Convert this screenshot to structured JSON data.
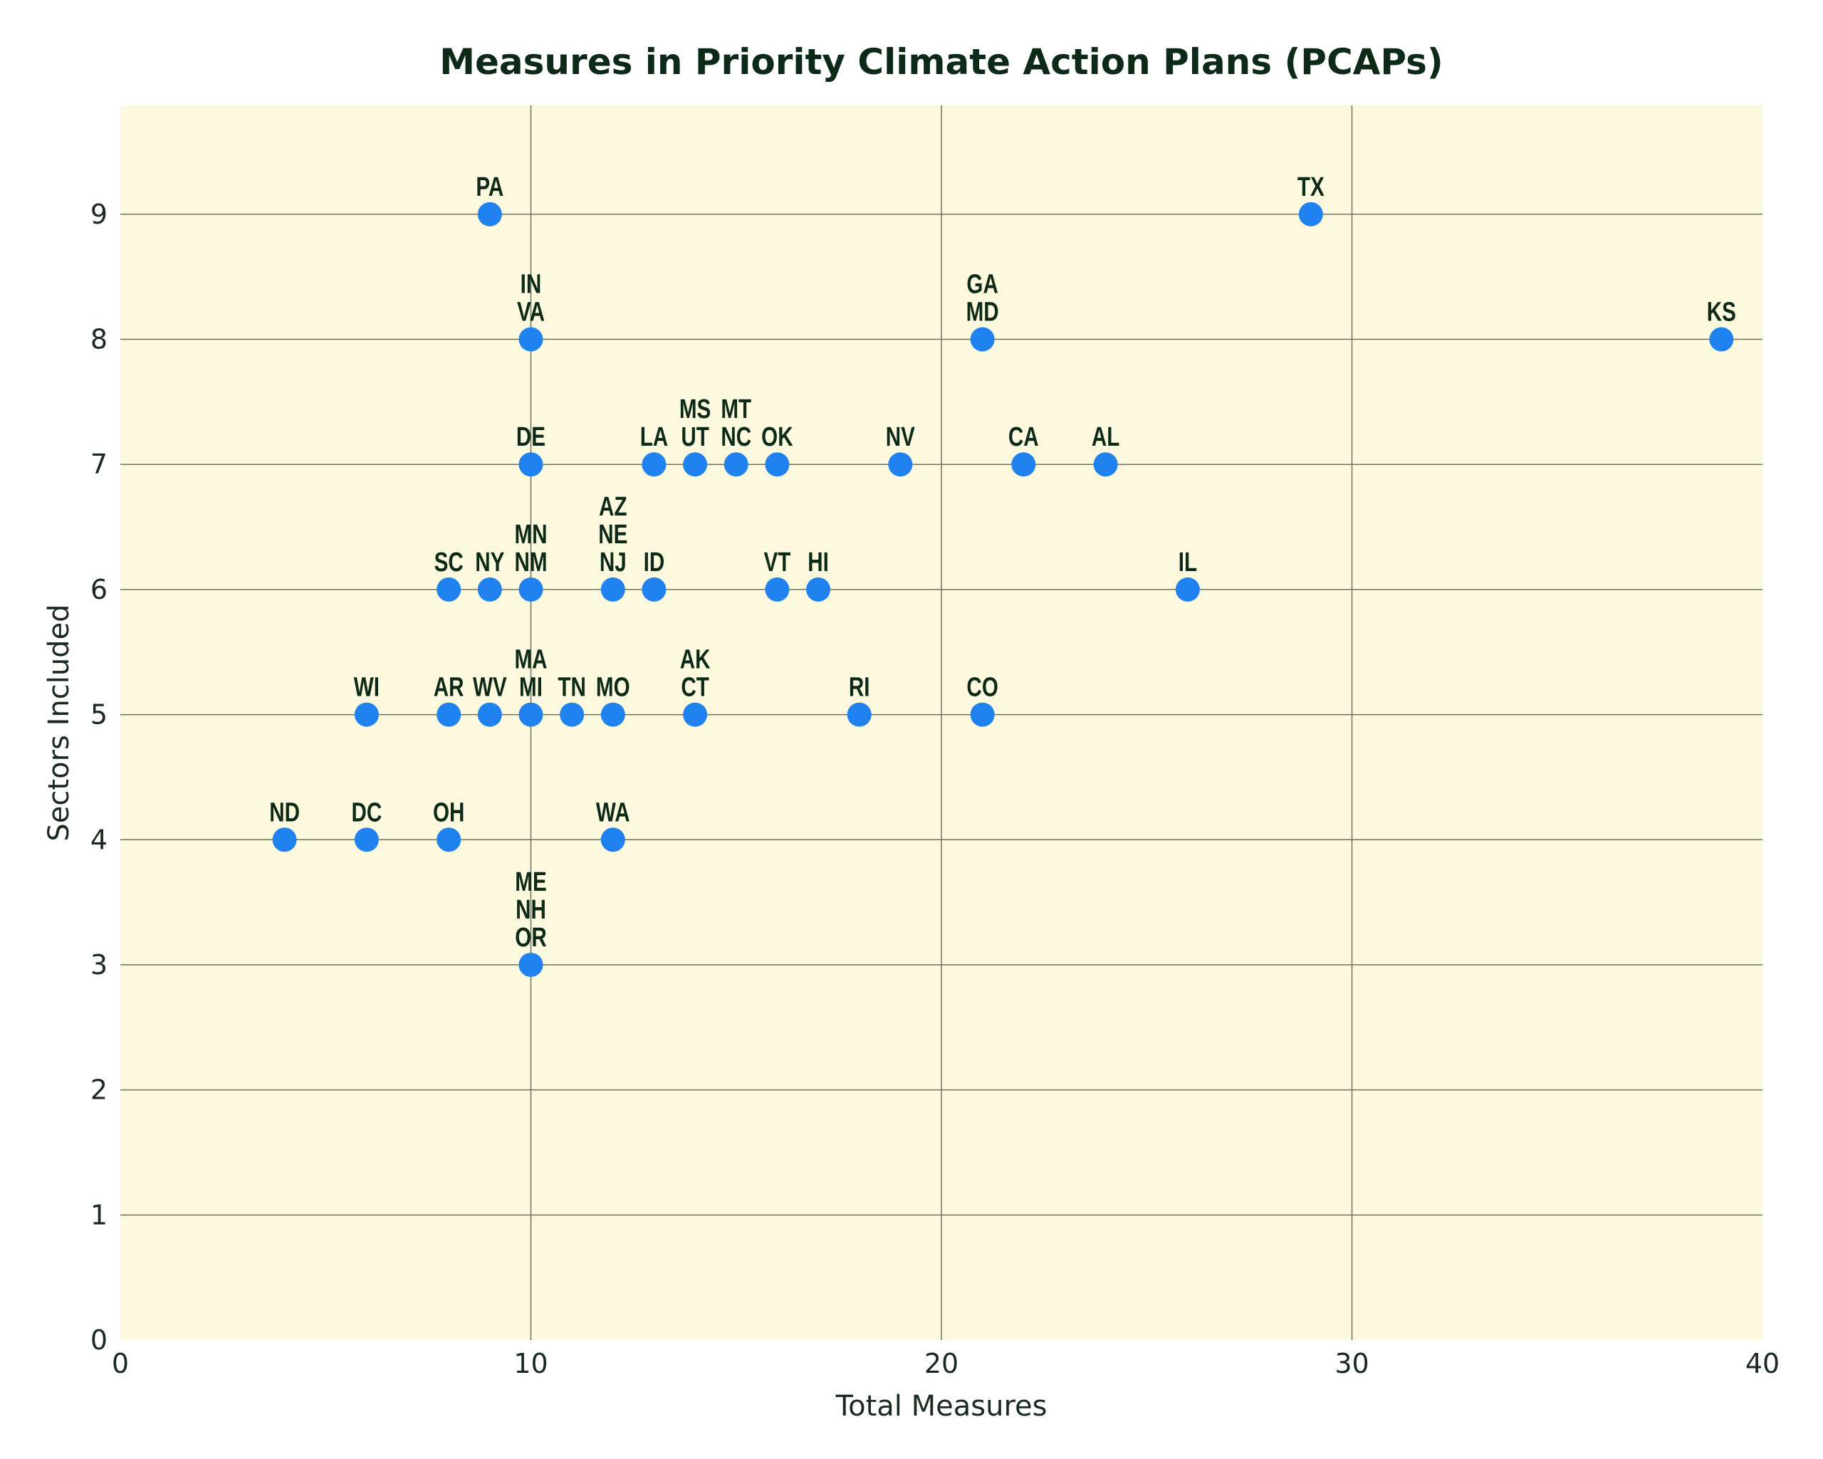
{
  "chart_data": {
    "type": "scatter",
    "title": "Measures in Priority Climate Action Plans (PCAPs)",
    "xlabel": "Total Measures",
    "ylabel": "Sectors Included",
    "xlim": [
      0,
      40
    ],
    "ylim": [
      0,
      9.87
    ],
    "xticks": [
      0,
      10,
      20,
      30,
      40
    ],
    "yticks": [
      0,
      1,
      2,
      3,
      4,
      5,
      6,
      7,
      8,
      9
    ],
    "grid": true,
    "colors": {
      "background": "#fdf9df",
      "point": "#1f82ee",
      "text": "#0d2a18",
      "grid": "#6b7360"
    },
    "points": [
      {
        "x": 9,
        "y": 9,
        "labels": [
          "PA"
        ]
      },
      {
        "x": 29,
        "y": 9,
        "labels": [
          "TX"
        ]
      },
      {
        "x": 10,
        "y": 8,
        "labels": [
          "IN",
          "VA"
        ]
      },
      {
        "x": 21,
        "y": 8,
        "labels": [
          "GA",
          "MD"
        ]
      },
      {
        "x": 39,
        "y": 8,
        "labels": [
          "KS"
        ]
      },
      {
        "x": 10,
        "y": 7,
        "labels": [
          "DE"
        ]
      },
      {
        "x": 13,
        "y": 7,
        "labels": [
          "LA"
        ]
      },
      {
        "x": 14,
        "y": 7,
        "labels": [
          "MS",
          "UT"
        ]
      },
      {
        "x": 15,
        "y": 7,
        "labels": [
          "MT",
          "NC"
        ]
      },
      {
        "x": 16,
        "y": 7,
        "labels": [
          "OK"
        ]
      },
      {
        "x": 19,
        "y": 7,
        "labels": [
          "NV"
        ]
      },
      {
        "x": 22,
        "y": 7,
        "labels": [
          "CA"
        ]
      },
      {
        "x": 24,
        "y": 7,
        "labels": [
          "AL"
        ]
      },
      {
        "x": 8,
        "y": 6,
        "labels": [
          "SC"
        ]
      },
      {
        "x": 9,
        "y": 6,
        "labels": [
          "NY"
        ]
      },
      {
        "x": 10,
        "y": 6,
        "labels": [
          "MN",
          "NM"
        ]
      },
      {
        "x": 12,
        "y": 6,
        "labels": [
          "AZ",
          "NE",
          "NJ"
        ]
      },
      {
        "x": 13,
        "y": 6,
        "labels": [
          "ID"
        ]
      },
      {
        "x": 16,
        "y": 6,
        "labels": [
          "VT"
        ]
      },
      {
        "x": 17,
        "y": 6,
        "labels": [
          "HI"
        ]
      },
      {
        "x": 26,
        "y": 6,
        "labels": [
          "IL"
        ]
      },
      {
        "x": 6,
        "y": 5,
        "labels": [
          "WI"
        ]
      },
      {
        "x": 8,
        "y": 5,
        "labels": [
          "AR"
        ]
      },
      {
        "x": 9,
        "y": 5,
        "labels": [
          "WV"
        ]
      },
      {
        "x": 10,
        "y": 5,
        "labels": [
          "MA",
          "MI"
        ]
      },
      {
        "x": 11,
        "y": 5,
        "labels": [
          "TN"
        ]
      },
      {
        "x": 12,
        "y": 5,
        "labels": [
          "MO"
        ]
      },
      {
        "x": 14,
        "y": 5,
        "labels": [
          "AK",
          "CT"
        ]
      },
      {
        "x": 18,
        "y": 5,
        "labels": [
          "RI"
        ]
      },
      {
        "x": 21,
        "y": 5,
        "labels": [
          "CO"
        ]
      },
      {
        "x": 4,
        "y": 4,
        "labels": [
          "ND"
        ]
      },
      {
        "x": 6,
        "y": 4,
        "labels": [
          "DC"
        ]
      },
      {
        "x": 8,
        "y": 4,
        "labels": [
          "OH"
        ]
      },
      {
        "x": 12,
        "y": 4,
        "labels": [
          "WA"
        ]
      },
      {
        "x": 10,
        "y": 3,
        "labels": [
          "ME",
          "NH",
          "OR"
        ]
      }
    ]
  }
}
